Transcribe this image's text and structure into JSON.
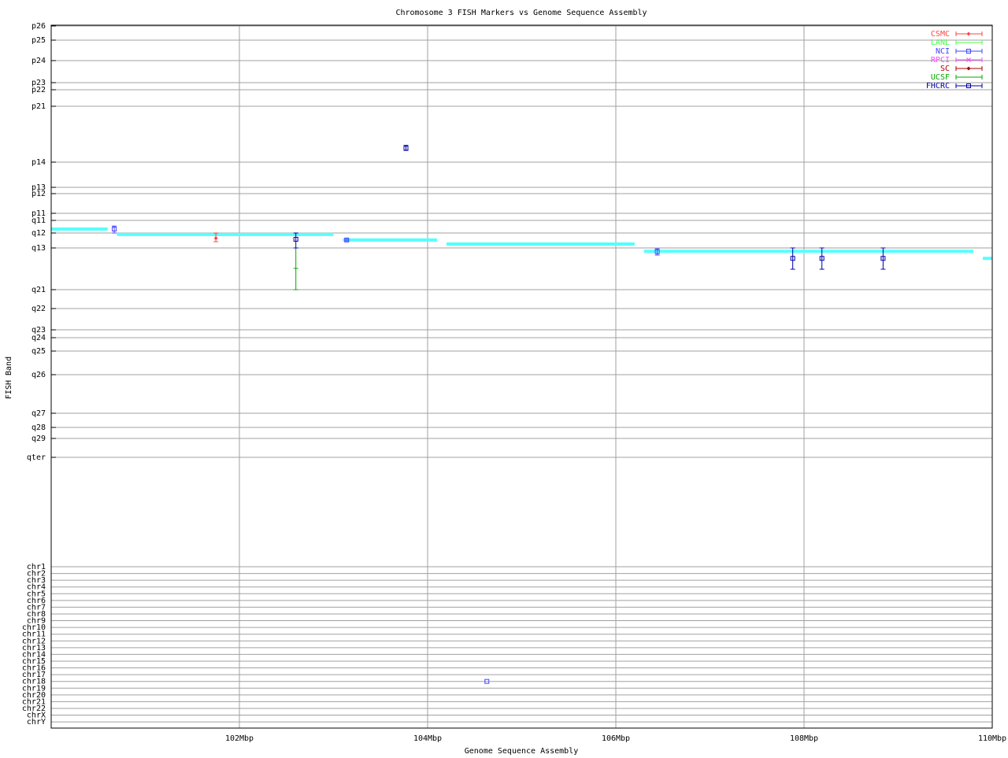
{
  "chart_data": {
    "type": "scatter",
    "title": "Chromosome 3 FISH Markers vs Genome Sequence Assembly",
    "xlabel": "Genome Sequence Assembly",
    "ylabel": "FISH Band",
    "xlim": [
      100,
      110
    ],
    "x_unit": "Mbp",
    "x_ticks": [
      "102Mbp",
      "104Mbp",
      "106Mbp",
      "108Mbp",
      "110Mbp"
    ],
    "x_tick_values": [
      102,
      104,
      106,
      108,
      110
    ],
    "grid": true,
    "legend_placement": "top-right",
    "bands": [
      "p26",
      "p25",
      "p24",
      "p23",
      "p22",
      "p21",
      "p14",
      "p13",
      "p12",
      "p11",
      "q11",
      "q12",
      "q13",
      "q21",
      "q22",
      "q23",
      "q24",
      "q25",
      "q26",
      "q27",
      "q28",
      "q29",
      "qter"
    ],
    "chromosomes": [
      "chr1",
      "chr2",
      "chr3",
      "chr4",
      "chr5",
      "chr6",
      "chr7",
      "chr8",
      "chr9",
      "chr10",
      "chr11",
      "chr12",
      "chr13",
      "chr14",
      "chr15",
      "chr16",
      "chr17",
      "chr18",
      "chr19",
      "chr20",
      "chr21",
      "chr22",
      "chrX",
      "chrY"
    ],
    "series": [
      {
        "name": "CSMC",
        "color": "#ff4444",
        "symbol": "diamond",
        "points": [
          {
            "x": 101.75,
            "band": "q12",
            "frac": 0.35,
            "lo": [
              "q12",
              0.0
            ],
            "hi": [
              "q12",
              0.58
            ]
          }
        ]
      },
      {
        "name": "LANL",
        "color": "#44ff44",
        "symbol": "tick",
        "points": []
      },
      {
        "name": "NCI",
        "color": "#4444ff",
        "symbol": "square",
        "points": [
          {
            "x": 100.67,
            "band": "q11",
            "frac": 0.69,
            "lo": [
              "q11",
              0.45
            ],
            "hi": [
              "q12",
              0.0
            ]
          },
          {
            "x": 103.14,
            "band": "q12",
            "frac": 0.47,
            "lo": [
              "q12",
              0.42
            ],
            "hi": [
              "q12",
              0.52
            ]
          },
          {
            "x": 106.44,
            "band": "q13",
            "frac": 0.09,
            "lo": [
              "q13",
              0.02
            ],
            "hi": [
              "q13",
              0.17
            ]
          },
          {
            "x": 104.63,
            "chromosome": "chr18"
          }
        ]
      },
      {
        "name": "RPCI",
        "color": "#ff44ff",
        "symbol": "x",
        "points": []
      },
      {
        "name": "SC",
        "color": "#aa0000",
        "symbol": "diamond",
        "points": []
      },
      {
        "name": "UCSF",
        "color": "#00aa00",
        "symbol": "tick",
        "points": [
          {
            "x": 102.6,
            "band": "q13",
            "frac": 0.49,
            "lo": [
              "q13",
              0.0
            ],
            "hi": [
              "q21",
              0.0
            ]
          }
        ]
      },
      {
        "name": "FHCRC",
        "color": "#0000aa",
        "symbol": "square",
        "points": [
          {
            "x": 102.6,
            "band": "q12",
            "frac": 0.42,
            "lo": [
              "q12",
              0.0
            ],
            "hi": [
              "q13",
              0.0
            ]
          },
          {
            "x": 103.77,
            "band": "p21",
            "frac": 0.75,
            "lo": [
              "p21",
              0.7
            ],
            "hi": [
              "p21",
              0.79
            ]
          },
          {
            "x": 107.88,
            "band": "q13",
            "frac": 0.25,
            "lo": [
              "q13",
              0.0
            ],
            "hi": [
              "q13",
              0.51
            ]
          },
          {
            "x": 108.19,
            "band": "q13",
            "frac": 0.25,
            "lo": [
              "q13",
              0.0
            ],
            "hi": [
              "q13",
              0.51
            ]
          },
          {
            "x": 108.84,
            "band": "q13",
            "frac": 0.25,
            "lo": [
              "q13",
              0.0
            ],
            "hi": [
              "q13",
              0.51
            ]
          }
        ]
      }
    ],
    "assembly": {
      "color": "#55ffff",
      "segments": [
        {
          "start": 100.0,
          "end": 100.6,
          "band": "q11",
          "frac": 0.69
        },
        {
          "start": 100.7,
          "end": 103.0,
          "band": "q12",
          "frac": 0.1
        },
        {
          "start": 103.1,
          "end": 104.1,
          "band": "q12",
          "frac": 0.47
        },
        {
          "start": 104.2,
          "end": 106.2,
          "band": "q12",
          "frac": 0.74
        },
        {
          "start": 106.3,
          "end": 109.8,
          "band": "q13",
          "frac": 0.08
        },
        {
          "start": 109.9,
          "end": 110.0,
          "band": "q13",
          "frac": 0.25
        }
      ]
    }
  }
}
